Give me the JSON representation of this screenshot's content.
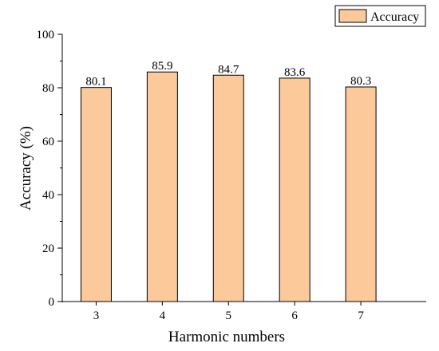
{
  "chart_data": {
    "type": "bar",
    "categories": [
      "3",
      "4",
      "5",
      "6",
      "7"
    ],
    "series": [
      {
        "name": "Accuracy",
        "values": [
          80.1,
          85.9,
          84.7,
          83.6,
          80.3
        ]
      }
    ],
    "data_labels": [
      "80.1",
      "85.9",
      "84.7",
      "83.6",
      "80.3"
    ],
    "xlabel": "Harmonic numbers",
    "ylabel": "Accuracy (%)",
    "ylim": [
      0,
      100
    ],
    "yticks": [
      0,
      20,
      40,
      60,
      80,
      100
    ],
    "grid": false,
    "legend_position": "top-right",
    "colors": {
      "bar_fill": "#fbc99a",
      "bar_stroke": "#000000",
      "axis": "#000000"
    }
  }
}
